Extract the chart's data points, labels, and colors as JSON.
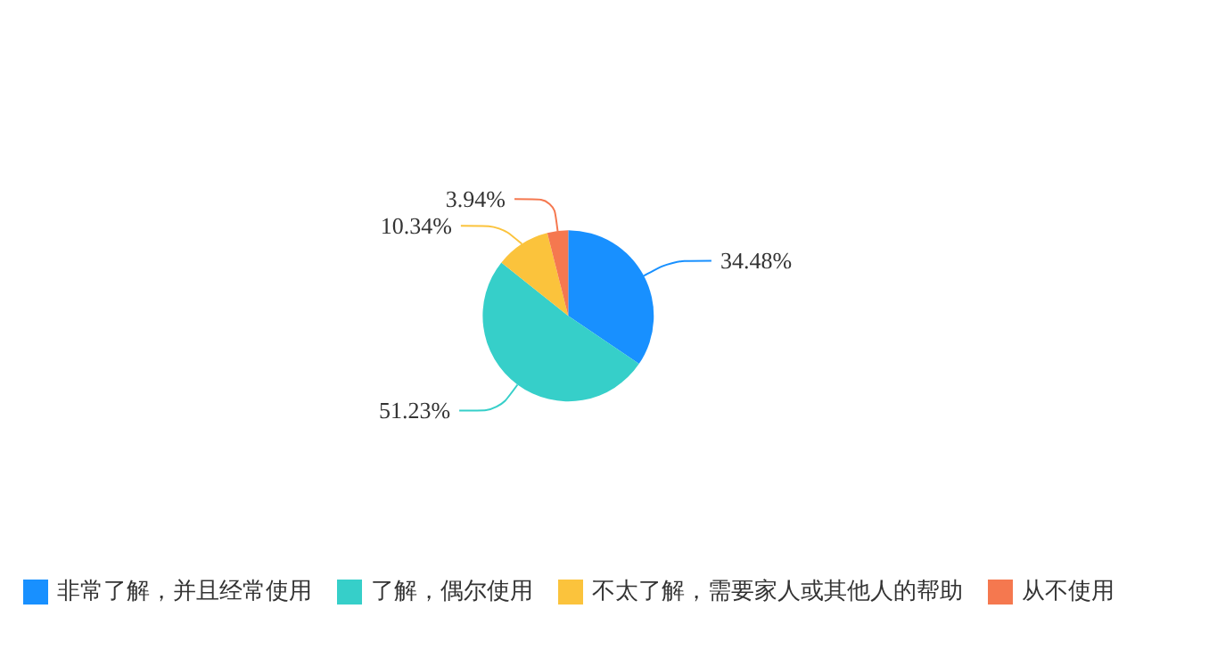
{
  "chart_data": {
    "type": "pie",
    "categories": [
      "非常了解，并且经常使用",
      "了解，偶尔使用",
      "不太了解，需要家人或其他人的帮助",
      "从不使用"
    ],
    "values": [
      34.48,
      51.23,
      10.34,
      3.94
    ],
    "value_labels": [
      "34.48%",
      "51.23%",
      "10.34%",
      "3.94%"
    ],
    "colors": [
      "#1890ff",
      "#36cfc9",
      "#fbc33c",
      "#f5784f"
    ],
    "legend": "bottom left"
  }
}
